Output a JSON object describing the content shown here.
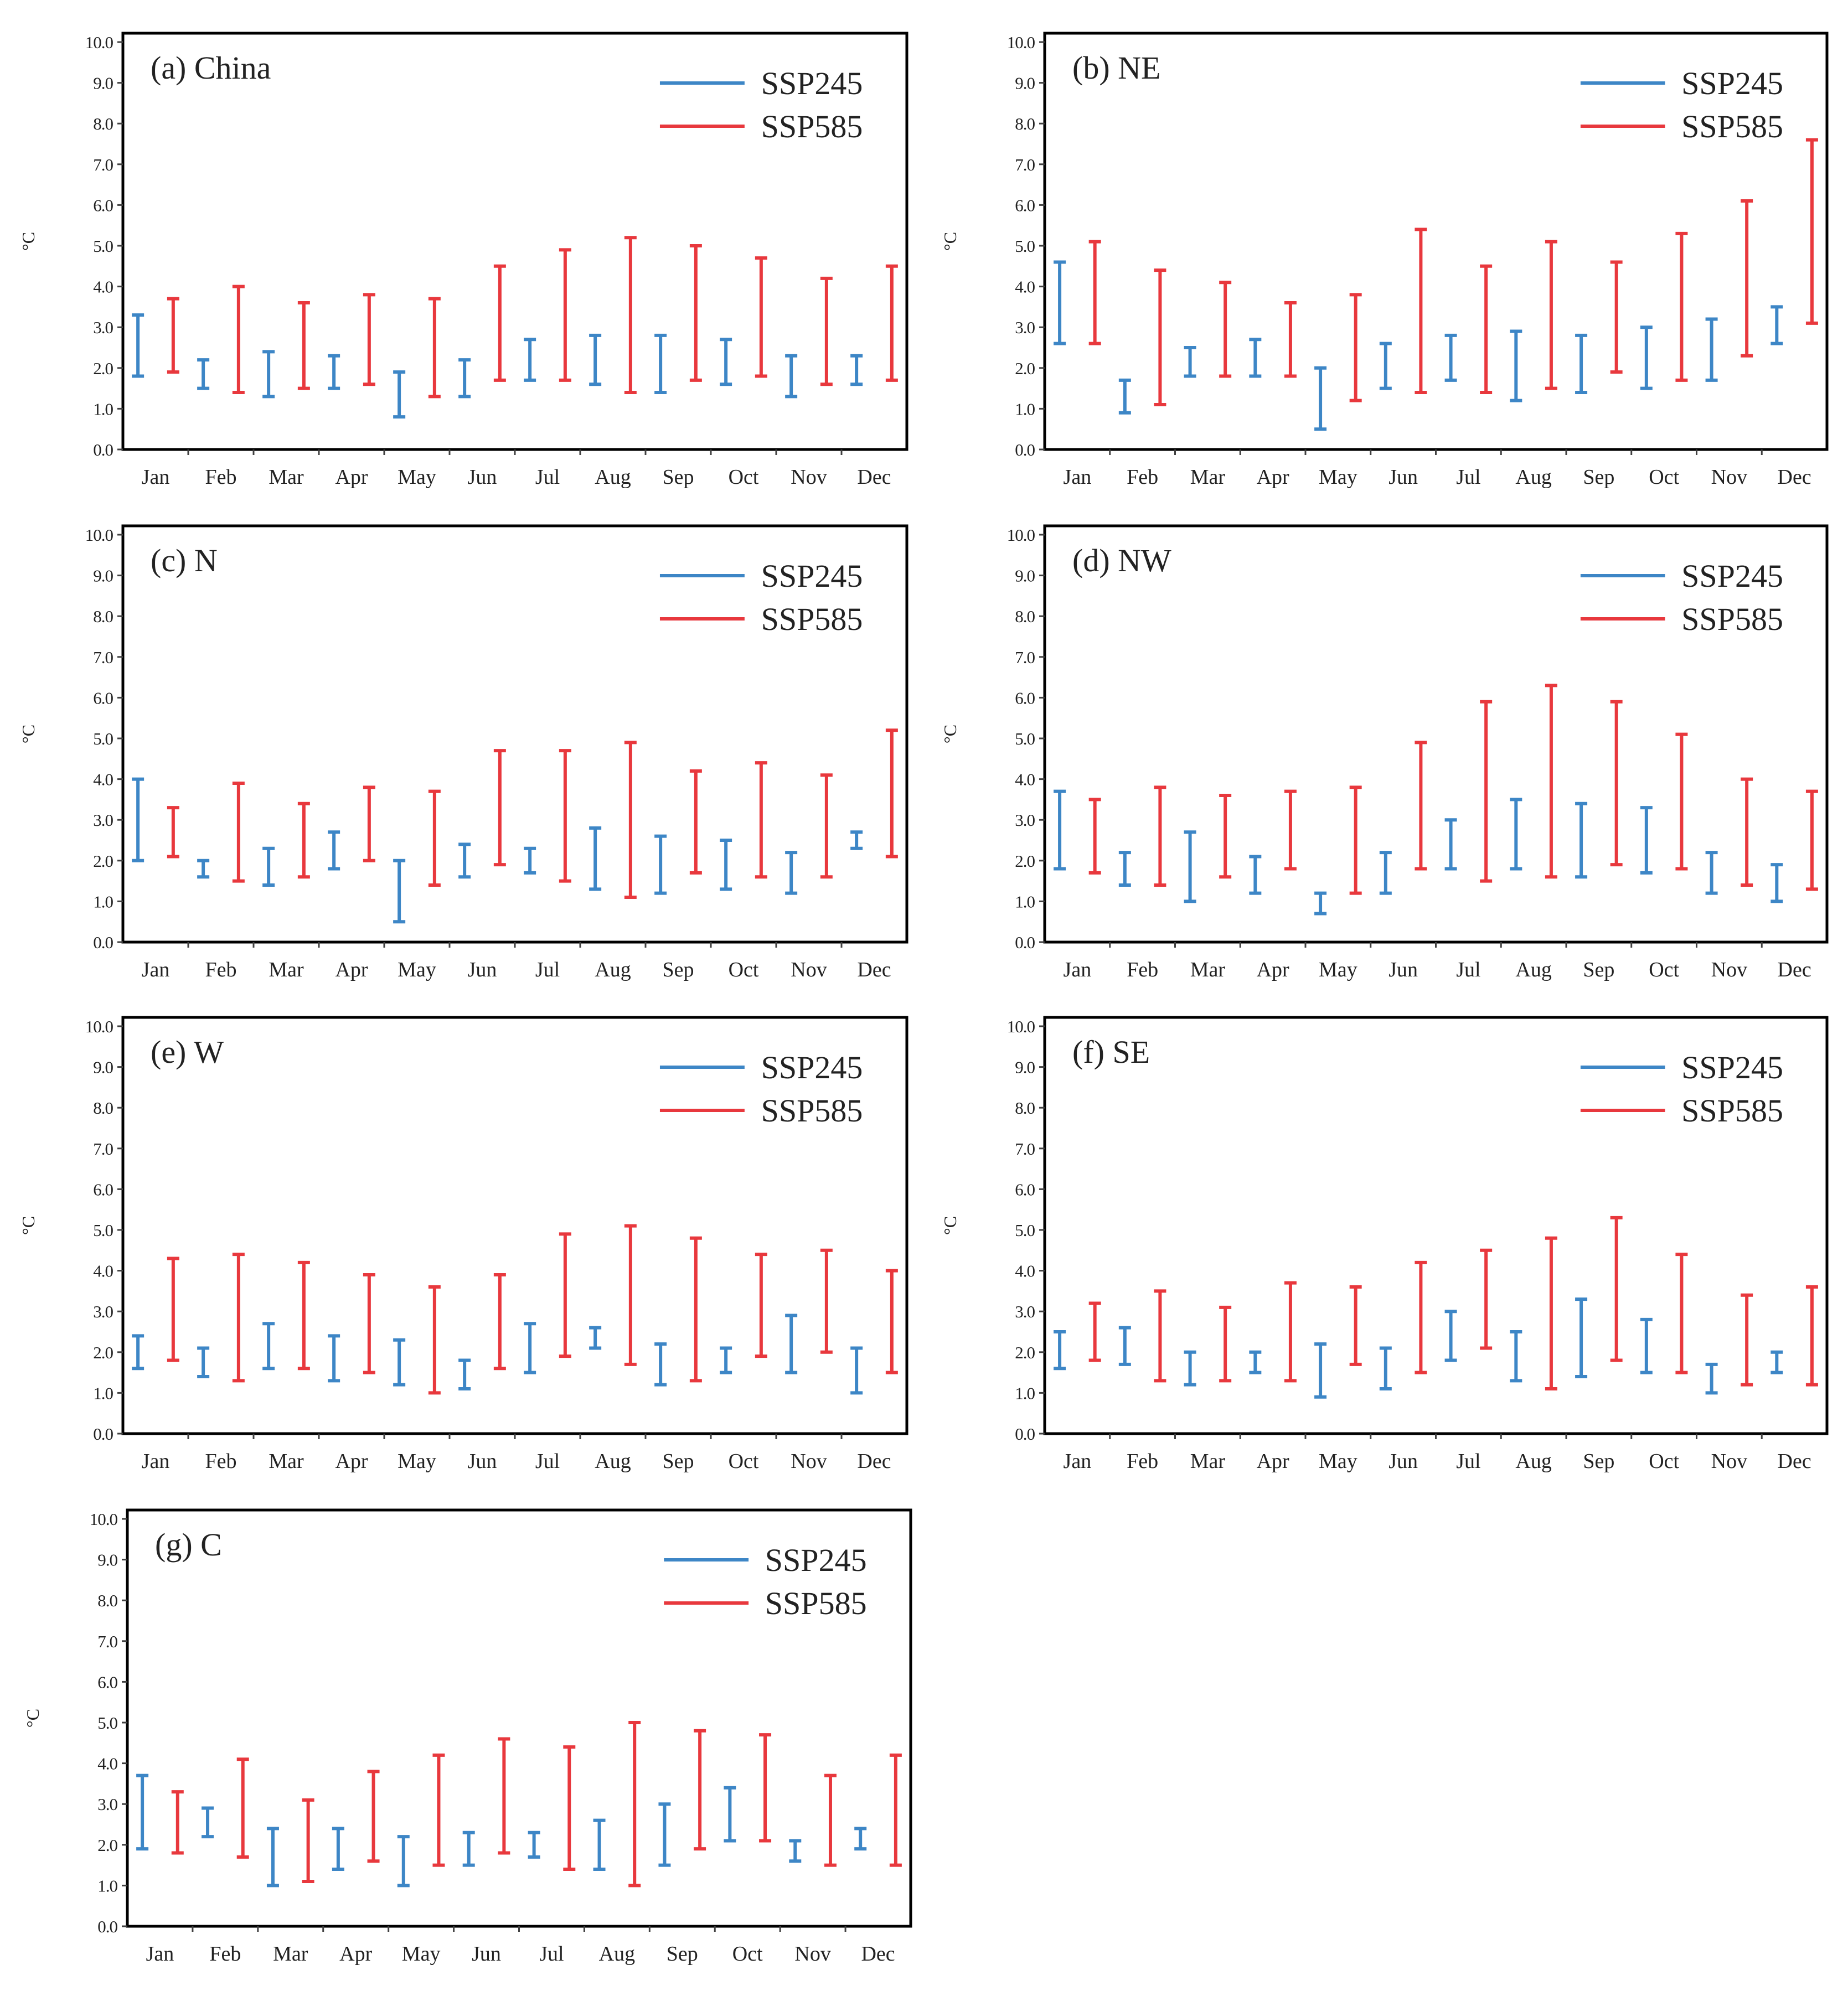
{
  "colors": {
    "ssp245": "#3d86c6",
    "ssp585": "#e8383d",
    "axis": "#404040",
    "frame": "#000000",
    "text": "#222222"
  },
  "chart_data": [
    {
      "type": "range",
      "title": "(a) China",
      "ylabel": "°C",
      "ylim": [
        0,
        10
      ],
      "yticks": [
        "0.0",
        "1.0",
        "2.0",
        "3.0",
        "4.0",
        "5.0",
        "6.0",
        "7.0",
        "8.0",
        "9.0",
        "10.0"
      ],
      "categories": [
        "Jan",
        "Feb",
        "Mar",
        "Apr",
        "May",
        "Jun",
        "Jul",
        "Aug",
        "Sep",
        "Oct",
        "Nov",
        "Dec"
      ],
      "series": [
        {
          "name": "SSP245",
          "low": [
            1.8,
            1.5,
            1.3,
            1.5,
            0.8,
            1.3,
            1.7,
            1.6,
            1.4,
            1.6,
            1.3,
            1.6
          ],
          "high": [
            3.3,
            2.2,
            2.4,
            2.3,
            1.9,
            2.2,
            2.7,
            2.8,
            2.8,
            2.7,
            2.3,
            2.3
          ]
        },
        {
          "name": "SSP585",
          "low": [
            1.9,
            1.4,
            1.5,
            1.6,
            1.3,
            1.7,
            1.7,
            1.4,
            1.7,
            1.8,
            1.6,
            1.7
          ],
          "high": [
            3.7,
            4.0,
            3.6,
            3.8,
            3.7,
            4.5,
            4.9,
            5.2,
            5.0,
            4.7,
            4.2,
            4.5
          ]
        }
      ]
    },
    {
      "type": "range",
      "title": "(b) NE",
      "ylabel": "°C",
      "ylim": [
        0,
        10
      ],
      "yticks": [
        "0.0",
        "1.0",
        "2.0",
        "3.0",
        "4.0",
        "5.0",
        "6.0",
        "7.0",
        "8.0",
        "9.0",
        "10.0"
      ],
      "categories": [
        "Jan",
        "Feb",
        "Mar",
        "Apr",
        "May",
        "Jun",
        "Jul",
        "Aug",
        "Sep",
        "Oct",
        "Nov",
        "Dec"
      ],
      "series": [
        {
          "name": "SSP245",
          "low": [
            2.6,
            0.9,
            1.8,
            1.8,
            0.5,
            1.5,
            1.7,
            1.2,
            1.4,
            1.5,
            1.7,
            2.6
          ],
          "high": [
            4.6,
            1.7,
            2.5,
            2.7,
            2.0,
            2.6,
            2.8,
            2.9,
            2.8,
            3.0,
            3.2,
            3.5
          ]
        },
        {
          "name": "SSP585",
          "low": [
            2.6,
            1.1,
            1.8,
            1.8,
            1.2,
            1.4,
            1.4,
            1.5,
            1.9,
            1.7,
            2.3,
            3.1
          ],
          "high": [
            5.1,
            4.4,
            4.1,
            3.6,
            3.8,
            5.4,
            4.5,
            5.1,
            4.6,
            5.3,
            6.1,
            7.6
          ]
        }
      ]
    },
    {
      "type": "range",
      "title": "(c) N",
      "ylabel": "°C",
      "ylim": [
        0,
        10
      ],
      "yticks": [
        "0.0",
        "1.0",
        "2.0",
        "3.0",
        "4.0",
        "5.0",
        "6.0",
        "7.0",
        "8.0",
        "9.0",
        "10.0"
      ],
      "categories": [
        "Jan",
        "Feb",
        "Mar",
        "Apr",
        "May",
        "Jun",
        "Jul",
        "Aug",
        "Sep",
        "Oct",
        "Nov",
        "Dec"
      ],
      "series": [
        {
          "name": "SSP245",
          "low": [
            2.0,
            1.6,
            1.4,
            1.8,
            0.5,
            1.6,
            1.7,
            1.3,
            1.2,
            1.3,
            1.2,
            2.3
          ],
          "high": [
            4.0,
            2.0,
            2.3,
            2.7,
            2.0,
            2.4,
            2.3,
            2.8,
            2.6,
            2.5,
            2.2,
            2.7
          ]
        },
        {
          "name": "SSP585",
          "low": [
            2.1,
            1.5,
            1.6,
            2.0,
            1.4,
            1.9,
            1.5,
            1.1,
            1.7,
            1.6,
            1.6,
            2.1
          ],
          "high": [
            3.3,
            3.9,
            3.4,
            3.8,
            3.7,
            4.7,
            4.7,
            4.9,
            4.2,
            4.4,
            4.1,
            5.2
          ]
        }
      ]
    },
    {
      "type": "range",
      "title": "(d) NW",
      "ylabel": "°C",
      "ylim": [
        0,
        10
      ],
      "yticks": [
        "0.0",
        "1.0",
        "2.0",
        "3.0",
        "4.0",
        "5.0",
        "6.0",
        "7.0",
        "8.0",
        "9.0",
        "10.0"
      ],
      "categories": [
        "Jan",
        "Feb",
        "Mar",
        "Apr",
        "May",
        "Jun",
        "Jul",
        "Aug",
        "Sep",
        "Oct",
        "Nov",
        "Dec"
      ],
      "series": [
        {
          "name": "SSP245",
          "low": [
            1.8,
            1.4,
            1.0,
            1.2,
            0.7,
            1.2,
            1.8,
            1.8,
            1.6,
            1.7,
            1.2,
            1.0
          ],
          "high": [
            3.7,
            2.2,
            2.7,
            2.1,
            1.2,
            2.2,
            3.0,
            3.5,
            3.4,
            3.3,
            2.2,
            1.9
          ]
        },
        {
          "name": "SSP585",
          "low": [
            1.7,
            1.4,
            1.6,
            1.8,
            1.2,
            1.8,
            1.5,
            1.6,
            1.9,
            1.8,
            1.4,
            1.3
          ],
          "high": [
            3.5,
            3.8,
            3.6,
            3.7,
            3.8,
            4.9,
            5.9,
            6.3,
            5.9,
            5.1,
            4.0,
            3.7
          ]
        }
      ]
    },
    {
      "type": "range",
      "title": "(e) W",
      "ylabel": "°C",
      "ylim": [
        0,
        10
      ],
      "yticks": [
        "0.0",
        "1.0",
        "2.0",
        "3.0",
        "4.0",
        "5.0",
        "6.0",
        "7.0",
        "8.0",
        "9.0",
        "10.0"
      ],
      "categories": [
        "Jan",
        "Feb",
        "Mar",
        "Apr",
        "May",
        "Jun",
        "Jul",
        "Aug",
        "Sep",
        "Oct",
        "Nov",
        "Dec"
      ],
      "series": [
        {
          "name": "SSP245",
          "low": [
            1.6,
            1.4,
            1.6,
            1.3,
            1.2,
            1.1,
            1.5,
            2.1,
            1.2,
            1.5,
            1.5,
            1.0
          ],
          "high": [
            2.4,
            2.1,
            2.7,
            2.4,
            2.3,
            1.8,
            2.7,
            2.6,
            2.2,
            2.1,
            2.9,
            2.1
          ]
        },
        {
          "name": "SSP585",
          "low": [
            1.8,
            1.3,
            1.6,
            1.5,
            1.0,
            1.6,
            1.9,
            1.7,
            1.3,
            1.9,
            2.0,
            1.5
          ],
          "high": [
            4.3,
            4.4,
            4.2,
            3.9,
            3.6,
            3.9,
            4.9,
            5.1,
            4.8,
            4.4,
            4.5,
            4.0
          ]
        }
      ]
    },
    {
      "type": "range",
      "title": "(f) SE",
      "ylabel": "°C",
      "ylim": [
        0,
        10
      ],
      "yticks": [
        "0.0",
        "1.0",
        "2.0",
        "3.0",
        "4.0",
        "5.0",
        "6.0",
        "7.0",
        "8.0",
        "9.0",
        "10.0"
      ],
      "categories": [
        "Jan",
        "Feb",
        "Mar",
        "Apr",
        "May",
        "Jun",
        "Jul",
        "Aug",
        "Sep",
        "Oct",
        "Nov",
        "Dec"
      ],
      "series": [
        {
          "name": "SSP245",
          "low": [
            1.6,
            1.7,
            1.2,
            1.5,
            0.9,
            1.1,
            1.8,
            1.3,
            1.4,
            1.5,
            1.0,
            1.5
          ],
          "high": [
            2.5,
            2.6,
            2.0,
            2.0,
            2.2,
            2.1,
            3.0,
            2.5,
            3.3,
            2.8,
            1.7,
            2.0
          ]
        },
        {
          "name": "SSP585",
          "low": [
            1.8,
            1.3,
            1.3,
            1.3,
            1.7,
            1.5,
            2.1,
            1.1,
            1.8,
            1.5,
            1.2,
            1.2
          ],
          "high": [
            3.2,
            3.5,
            3.1,
            3.7,
            3.6,
            4.2,
            4.5,
            4.8,
            5.3,
            4.4,
            3.4,
            3.6
          ]
        }
      ]
    },
    {
      "type": "range",
      "title": "(g) C",
      "ylabel": "°C",
      "ylim": [
        0,
        10
      ],
      "yticks": [
        "0.0",
        "1.0",
        "2.0",
        "3.0",
        "4.0",
        "5.0",
        "6.0",
        "7.0",
        "8.0",
        "9.0",
        "10.0"
      ],
      "categories": [
        "Jan",
        "Feb",
        "Mar",
        "Apr",
        "May",
        "Jun",
        "Jul",
        "Aug",
        "Sep",
        "Oct",
        "Nov",
        "Dec"
      ],
      "series": [
        {
          "name": "SSP245",
          "low": [
            1.9,
            2.2,
            1.0,
            1.4,
            1.0,
            1.5,
            1.7,
            1.4,
            1.5,
            2.1,
            1.6,
            1.9
          ],
          "high": [
            3.7,
            2.9,
            2.4,
            2.4,
            2.2,
            2.3,
            2.3,
            2.6,
            3.0,
            3.4,
            2.1,
            2.4
          ]
        },
        {
          "name": "SSP585",
          "low": [
            1.8,
            1.7,
            1.1,
            1.6,
            1.5,
            1.8,
            1.4,
            1.0,
            1.9,
            2.1,
            1.5,
            1.5
          ],
          "high": [
            3.3,
            4.1,
            3.1,
            3.8,
            4.2,
            4.6,
            4.4,
            5.0,
            4.8,
            4.7,
            3.7,
            4.2
          ]
        }
      ]
    }
  ]
}
